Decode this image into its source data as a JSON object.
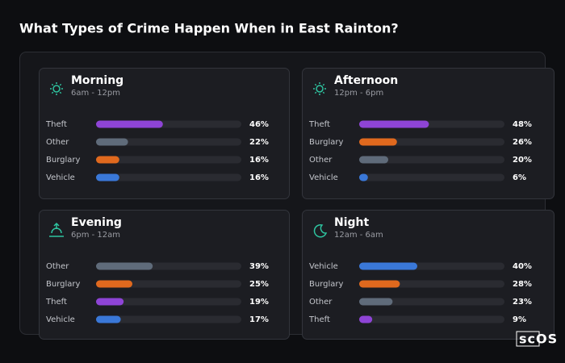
{
  "title": "What Types of Crime Happen When in East Rainton?",
  "watermark": "scOS",
  "chart_data": [
    {
      "type": "bar",
      "title": "Morning",
      "subtitle": "6am - 12pm",
      "categories": [
        "Theft",
        "Other",
        "Burglary",
        "Vehicle"
      ],
      "values": [
        46,
        22,
        16,
        16
      ],
      "value_labels": [
        "46%",
        "22%",
        "16%",
        "16%"
      ],
      "colors": [
        "#8e44d6",
        "#5f6b7a",
        "#e0691e",
        "#3a78d8"
      ],
      "xlim": [
        0,
        100
      ]
    },
    {
      "type": "bar",
      "title": "Afternoon",
      "subtitle": "12pm - 6pm",
      "categories": [
        "Theft",
        "Burglary",
        "Other",
        "Vehicle"
      ],
      "values": [
        48,
        26,
        20,
        6
      ],
      "value_labels": [
        "48%",
        "26%",
        "20%",
        "6%"
      ],
      "colors": [
        "#8e44d6",
        "#e0691e",
        "#5f6b7a",
        "#3a78d8"
      ],
      "xlim": [
        0,
        100
      ]
    },
    {
      "type": "bar",
      "title": "Evening",
      "subtitle": "6pm - 12am",
      "categories": [
        "Other",
        "Burglary",
        "Theft",
        "Vehicle"
      ],
      "values": [
        39,
        25,
        19,
        17
      ],
      "value_labels": [
        "39%",
        "25%",
        "19%",
        "17%"
      ],
      "colors": [
        "#5f6b7a",
        "#e0691e",
        "#8e44d6",
        "#3a78d8"
      ],
      "xlim": [
        0,
        100
      ]
    },
    {
      "type": "bar",
      "title": "Night",
      "subtitle": "12am - 6am",
      "categories": [
        "Vehicle",
        "Burglary",
        "Other",
        "Theft"
      ],
      "values": [
        40,
        28,
        23,
        9
      ],
      "value_labels": [
        "40%",
        "28%",
        "23%",
        "9%"
      ],
      "colors": [
        "#3a78d8",
        "#e0691e",
        "#5f6b7a",
        "#8e44d6"
      ],
      "xlim": [
        0,
        100
      ]
    }
  ]
}
